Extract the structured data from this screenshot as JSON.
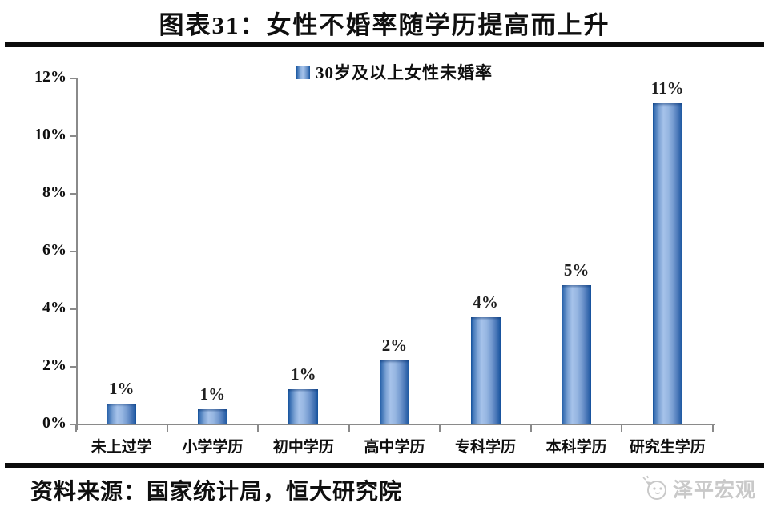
{
  "header": {
    "title": "图表31：女性不婚率随学历提高而上升"
  },
  "chart_data": {
    "type": "bar",
    "title": "图表31：女性不婚率随学历提高而上升",
    "categories": [
      "未上过学",
      "小学学历",
      "初中学历",
      "高中学历",
      "专科学历",
      "本科学历",
      "研究生学历"
    ],
    "series": [
      {
        "name": "30岁及以上女性未婚率",
        "values": [
          0.7,
          0.5,
          1.2,
          2.2,
          3.7,
          4.8,
          11.1
        ],
        "data_labels": [
          "1%",
          "1%",
          "1%",
          "2%",
          "4%",
          "5%",
          "11%"
        ]
      }
    ],
    "xlabel": "",
    "ylabel": "",
    "ylim": [
      0,
      12
    ],
    "ytick_labels": [
      "0%",
      "2%",
      "4%",
      "6%",
      "8%",
      "10%",
      "12%"
    ],
    "grid": false,
    "legend_position": "top-center",
    "colors": {
      "bar_edge": "#16549e",
      "bar_center": "#a6c2ea",
      "axis": "#8a8a8a",
      "text": "#0f0f0f",
      "watermark": "#c9c9c9"
    }
  },
  "footer": {
    "source": "资料来源：国家统计局，恒大研究院",
    "watermark": "泽平宏观"
  }
}
